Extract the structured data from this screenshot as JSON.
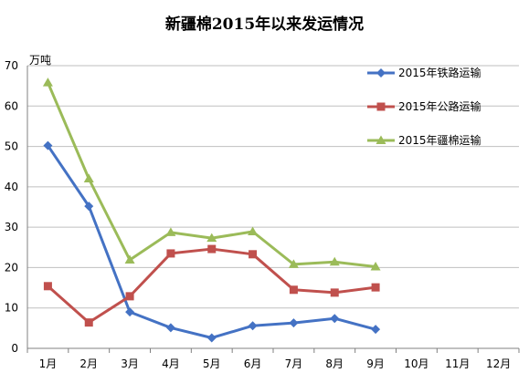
{
  "chart_data": {
    "type": "line",
    "title": "新疆棉2015年以来发运情况",
    "y_unit": "万吨",
    "categories": [
      "1月",
      "2月",
      "3月",
      "4月",
      "5月",
      "6月",
      "7月",
      "8月",
      "9月",
      "10月",
      "11月",
      "12月"
    ],
    "ylim": [
      0,
      70
    ],
    "y_ticks": [
      0,
      10,
      20,
      30,
      40,
      50,
      60,
      70
    ],
    "grid": true,
    "legend_position": "top-right",
    "series": [
      {
        "name": "2015年铁路运输",
        "color": "#4472C4",
        "marker": "diamond",
        "values": [
          50.2,
          35.2,
          9.0,
          5.1,
          2.6,
          5.6,
          6.3,
          7.4,
          4.7,
          null,
          null,
          null
        ]
      },
      {
        "name": "2015年公路运输",
        "color": "#C0504D",
        "marker": "square",
        "values": [
          15.4,
          6.4,
          12.9,
          23.5,
          24.6,
          23.3,
          14.5,
          13.8,
          15.1,
          null,
          null,
          null
        ]
      },
      {
        "name": "2015年疆棉运输",
        "color": "#9BBB59",
        "marker": "triangle",
        "values": [
          65.8,
          42.0,
          21.9,
          28.7,
          27.3,
          28.9,
          20.8,
          21.4,
          20.2,
          null,
          null,
          null
        ]
      }
    ]
  }
}
